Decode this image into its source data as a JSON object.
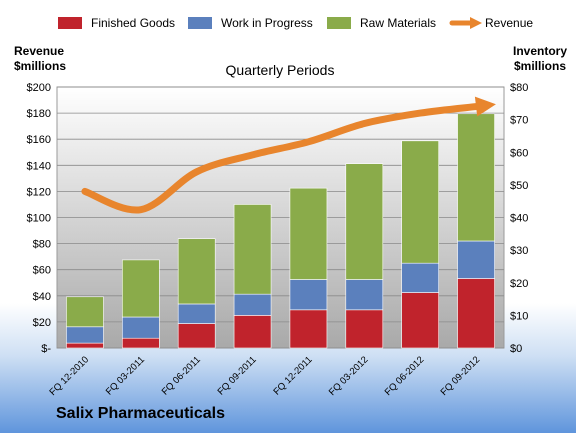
{
  "company": "Salix Pharmaceuticals",
  "chart_data": {
    "type": "bar",
    "title": "Quarterly Periods",
    "stacked": true,
    "categories": [
      "FQ 12-2010",
      "FQ 03-2011",
      "FQ 06-2011",
      "FQ 09-2011",
      "FQ 12-2011",
      "FQ 03-2012",
      "FQ 06-2012",
      "FQ 09-2012"
    ],
    "series": [
      {
        "name": "Finished Goods",
        "axis": "right",
        "color": "#c0232c",
        "values": [
          1.5,
          3,
          7.5,
          10,
          11.7,
          11.7,
          17,
          21.3
        ]
      },
      {
        "name": "Work in Progress",
        "axis": "right",
        "color": "#5b80bd",
        "values": [
          5,
          6.5,
          6,
          6.5,
          9.3,
          9.3,
          9,
          11.5
        ]
      },
      {
        "name": "Raw Materials",
        "axis": "right",
        "color": "#8aab4a",
        "values": [
          9.2,
          17.5,
          20,
          27.5,
          28,
          35.5,
          37.5,
          39
        ]
      },
      {
        "name": "Revenue",
        "type": "line",
        "axis": "left",
        "color": "#e8852d",
        "values": [
          120,
          106,
          135,
          148,
          158,
          172,
          180,
          185
        ]
      }
    ],
    "left_axis": {
      "label": "Revenue\n$millions",
      "min": 0,
      "max": 200,
      "step": 20,
      "tick_labels": [
        "$-",
        "$20",
        "$40",
        "$60",
        "$80",
        "$100",
        "$120",
        "$140",
        "$160",
        "$180",
        "$200"
      ]
    },
    "right_axis": {
      "label": "Inventory\n$millions",
      "min": 0,
      "max": 80,
      "step": 10,
      "tick_labels": [
        "$0",
        "$10",
        "$20",
        "$30",
        "$40",
        "$50",
        "$60",
        "$70",
        "$80"
      ]
    },
    "grid": true,
    "legend_position": "top"
  }
}
